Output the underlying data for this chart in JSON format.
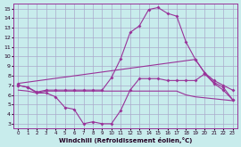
{
  "xlabel": "Windchill (Refroidissement éolien,°C)",
  "background_color": "#c8ecec",
  "grid_color": "#aaaacc",
  "line_color": "#993399",
  "x_all": [
    0,
    1,
    2,
    3,
    4,
    5,
    6,
    7,
    8,
    9,
    10,
    11,
    12,
    13,
    14,
    15,
    16,
    17,
    18,
    19,
    20,
    21,
    22,
    23
  ],
  "line_wc": [
    7.0,
    6.8,
    6.2,
    6.2,
    5.8,
    4.7,
    4.5,
    3.0,
    3.2,
    3.0,
    3.0,
    4.4,
    6.5,
    7.7,
    7.7,
    7.7,
    7.5,
    7.5,
    7.5,
    7.5,
    8.2,
    7.2,
    6.5,
    5.5
  ],
  "line_main": [
    7.0,
    6.8,
    6.3,
    6.5,
    6.5,
    6.5,
    6.5,
    6.5,
    6.5,
    6.5,
    7.8,
    9.8,
    12.5,
    13.2,
    14.9,
    15.1,
    14.5,
    14.2,
    11.5,
    9.7,
    8.3,
    7.3,
    6.8,
    5.5
  ],
  "line_tmax_x": [
    0,
    19,
    20,
    21,
    22,
    23
  ],
  "line_tmax_y": [
    7.2,
    9.7,
    8.3,
    7.5,
    7.0,
    6.5
  ],
  "line_tmin_x": [
    0,
    1,
    2,
    3,
    4,
    5,
    6,
    7,
    8,
    9,
    10,
    11,
    12,
    13,
    14,
    15,
    16,
    17,
    18,
    19,
    20,
    21,
    22,
    23
  ],
  "line_tmin_y": [
    6.5,
    6.4,
    6.2,
    6.4,
    6.4,
    6.4,
    6.4,
    6.4,
    6.4,
    6.4,
    6.4,
    6.4,
    6.4,
    6.4,
    6.4,
    6.4,
    6.4,
    6.4,
    6.0,
    5.8,
    5.7,
    5.6,
    5.5,
    5.4
  ],
  "ylim": [
    2.5,
    15.5
  ],
  "xlim": [
    -0.5,
    23.5
  ],
  "yticks": [
    3,
    4,
    5,
    6,
    7,
    8,
    9,
    10,
    11,
    12,
    13,
    14,
    15
  ],
  "xticks": [
    0,
    1,
    2,
    3,
    4,
    5,
    6,
    7,
    8,
    9,
    10,
    11,
    12,
    13,
    14,
    15,
    16,
    17,
    18,
    19,
    20,
    21,
    22,
    23
  ]
}
